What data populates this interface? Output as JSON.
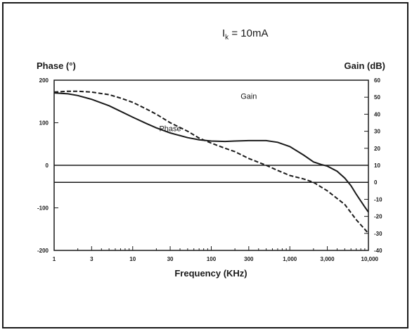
{
  "chart_data": {
    "type": "line",
    "title": "Ik = 10mA",
    "title_main": "I",
    "title_sub": "k",
    "title_rest": " = 10mA",
    "xlabel": "Frequency (KHz)",
    "x_scale": "log",
    "xlim": [
      1,
      10000
    ],
    "x_ticks": [
      1,
      3,
      10,
      30,
      100,
      300,
      1000,
      3000,
      10000
    ],
    "x_tick_labels": [
      "1",
      "3",
      "10",
      "30",
      "100",
      "300",
      "1,000",
      "3,000",
      "10,000"
    ],
    "y_left": {
      "label": "Phase (°)",
      "lim": [
        -200,
        200
      ],
      "ticks": [
        200,
        100,
        0,
        -100,
        -200
      ],
      "tick_labels": [
        "200",
        "100",
        "0",
        "-100",
        "-200"
      ]
    },
    "y_right": {
      "label": "Gain (dB)",
      "lim": [
        -40,
        60
      ],
      "ticks": [
        60,
        50,
        40,
        30,
        20,
        10,
        0,
        -10,
        -20,
        -30,
        -40
      ],
      "tick_labels": [
        "60",
        "50",
        "40",
        "30",
        "20",
        "10",
        "0",
        "-10",
        "-20",
        "-30",
        "-40"
      ]
    },
    "reference_lines": [
      {
        "axis": "left",
        "value": 0
      },
      {
        "axis": "right",
        "value": 0
      }
    ],
    "grid": false,
    "series": [
      {
        "name": "Phase",
        "axis": "left",
        "style": "solid",
        "x": [
          1,
          1.5,
          2,
          3,
          5,
          7,
          10,
          15,
          20,
          30,
          50,
          70,
          100,
          150,
          200,
          300,
          500,
          700,
          1000,
          1500,
          2000,
          2500,
          3000,
          4000,
          5000,
          6000,
          7000,
          8000,
          9000,
          10000
        ],
        "y": [
          170,
          168,
          164,
          155,
          140,
          127,
          113,
          98,
          88,
          76,
          65,
          60,
          57,
          56,
          57,
          58,
          58,
          54,
          44,
          24,
          8,
          2,
          -2,
          -14,
          -30,
          -48,
          -68,
          -84,
          -98,
          -110
        ]
      },
      {
        "name": "Gain",
        "axis": "right",
        "style": "dashed",
        "x": [
          1,
          1.5,
          2,
          3,
          5,
          7,
          10,
          15,
          20,
          30,
          50,
          70,
          100,
          150,
          200,
          300,
          500,
          700,
          1000,
          1500,
          2000,
          3000,
          5000,
          7000,
          10000
        ],
        "y": [
          53,
          53.5,
          53.5,
          53,
          51.5,
          49.5,
          47,
          43,
          40,
          35,
          30,
          26,
          23,
          20,
          18,
          14,
          10,
          7,
          4,
          2,
          0,
          -5,
          -13,
          -22,
          -30
        ]
      }
    ],
    "annotations": [
      {
        "text": "Gain",
        "x": 300,
        "axis": "right",
        "y": 49
      },
      {
        "text": "Phase",
        "x": 30,
        "axis": "left",
        "y": 80
      }
    ]
  }
}
